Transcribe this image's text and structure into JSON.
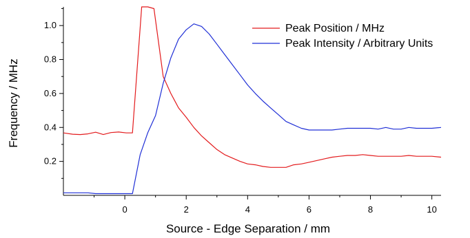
{
  "chart_data": {
    "type": "line",
    "title": "",
    "xlabel": "Source - Edge Separation / mm",
    "ylabel": "Frequency / MHz",
    "xlim": [
      -2.0,
      10.3
    ],
    "ylim": [
      0.0,
      1.11
    ],
    "x_ticks": [
      0,
      2,
      4,
      6,
      8,
      10
    ],
    "y_ticks": [
      0.2,
      0.4,
      0.6,
      0.8,
      1.0
    ],
    "legend_position": "top-right",
    "grid": false,
    "series": [
      {
        "name": "Peak Position / MHz",
        "color": "#e31a1c",
        "x": [
          -2.0,
          -1.7,
          -1.45,
          -1.2,
          -0.95,
          -0.7,
          -0.45,
          -0.2,
          0.05,
          0.25,
          0.55,
          0.75,
          0.95,
          1.25,
          1.5,
          1.75,
          2.0,
          2.25,
          2.5,
          2.75,
          3.0,
          3.25,
          3.5,
          3.75,
          4.0,
          4.25,
          4.5,
          4.75,
          5.0,
          5.25,
          5.5,
          5.75,
          6.0,
          6.25,
          6.5,
          6.75,
          7.0,
          7.25,
          7.5,
          7.75,
          8.0,
          8.25,
          8.5,
          8.75,
          9.0,
          9.25,
          9.5,
          9.75,
          10.0,
          10.3
        ],
        "values": [
          0.368,
          0.36,
          0.358,
          0.362,
          0.372,
          0.358,
          0.37,
          0.373,
          0.368,
          0.368,
          1.11,
          1.11,
          1.1,
          0.7,
          0.6,
          0.515,
          0.46,
          0.4,
          0.35,
          0.31,
          0.27,
          0.24,
          0.22,
          0.2,
          0.185,
          0.18,
          0.17,
          0.165,
          0.165,
          0.165,
          0.18,
          0.185,
          0.195,
          0.205,
          0.215,
          0.225,
          0.23,
          0.235,
          0.235,
          0.24,
          0.235,
          0.23,
          0.23,
          0.23,
          0.23,
          0.235,
          0.23,
          0.23,
          0.23,
          0.225
        ]
      },
      {
        "name": "Peak Intensity / Arbitrary Units",
        "color": "#1f2fd6",
        "x": [
          -2.0,
          -1.7,
          -1.45,
          -1.2,
          -0.95,
          -0.7,
          -0.45,
          -0.2,
          0.05,
          0.25,
          0.5,
          0.75,
          1.0,
          1.25,
          1.5,
          1.75,
          2.0,
          2.25,
          2.5,
          2.75,
          3.0,
          3.25,
          3.5,
          3.75,
          4.0,
          4.25,
          4.5,
          4.75,
          5.0,
          5.25,
          5.5,
          5.75,
          6.0,
          6.25,
          6.5,
          6.75,
          7.0,
          7.25,
          7.5,
          7.75,
          8.0,
          8.25,
          8.5,
          8.75,
          9.0,
          9.25,
          9.5,
          9.75,
          10.0,
          10.3
        ],
        "values": [
          0.015,
          0.015,
          0.015,
          0.015,
          0.01,
          0.01,
          0.01,
          0.01,
          0.01,
          0.01,
          0.24,
          0.37,
          0.47,
          0.66,
          0.81,
          0.92,
          0.975,
          1.01,
          0.995,
          0.95,
          0.89,
          0.83,
          0.77,
          0.71,
          0.65,
          0.6,
          0.555,
          0.515,
          0.475,
          0.435,
          0.415,
          0.395,
          0.385,
          0.385,
          0.385,
          0.385,
          0.39,
          0.395,
          0.395,
          0.395,
          0.395,
          0.39,
          0.4,
          0.39,
          0.39,
          0.4,
          0.395,
          0.395,
          0.395,
          0.4
        ]
      }
    ]
  }
}
